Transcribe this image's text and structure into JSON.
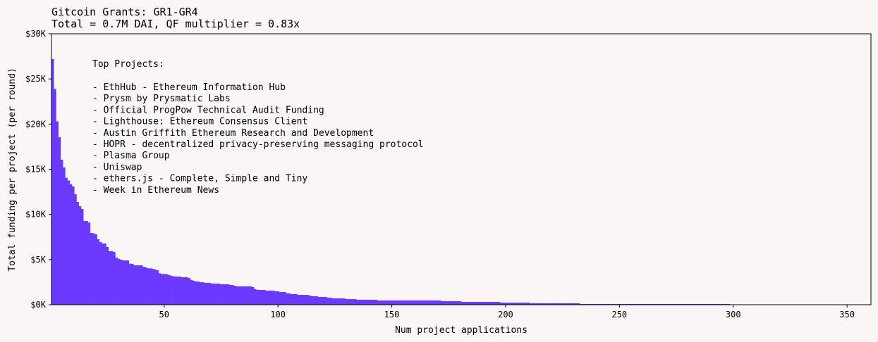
{
  "chart_data": {
    "type": "bar",
    "title": "Gitcoin Grants: GR1-GR4",
    "subtitle": "Total = 0.7M DAI, QF multiplier = 0.83x",
    "xlabel": "Num project applications",
    "ylabel": "Total funding per project (per round)",
    "xlim": [
      0.5,
      360.5
    ],
    "ylim": [
      0,
      30000
    ],
    "xticks": [
      50,
      100,
      150,
      200,
      250,
      300,
      350
    ],
    "yticks": [
      0,
      5000,
      10000,
      15000,
      20000,
      25000,
      30000
    ],
    "ytick_labels": [
      "$0K",
      "$5K",
      "$10K",
      "$15K",
      "$20K",
      "$25K",
      "$30K"
    ],
    "grid": false,
    "bar_color": "#6a38ff",
    "background": "#f9f7f3",
    "annotation": {
      "heading": "Top Projects:",
      "items": [
        "- EthHub - Ethereum Information Hub",
        "- Prysm by Prysmatic Labs",
        "- Official ProgPow Technical Audit Funding",
        "- Lighthouse: Ethereum Consensus Client",
        "- Austin Griffith Ethereum Research and Development",
        "- HOPR - decentralized privacy-preserving messaging protocol",
        "- Plasma Group",
        "- Uniswap",
        "- ethers.js - Complete, Simple and Tiny",
        "- Week in Ethereum News"
      ]
    },
    "values": [
      27200,
      23900,
      20300,
      18550,
      16050,
      15200,
      14050,
      13750,
      13350,
      13100,
      12240,
      11380,
      10900,
      10600,
      9270,
      9270,
      9100,
      7950,
      7900,
      7800,
      7250,
      6940,
      6780,
      6780,
      6390,
      5920,
      5920,
      5840,
      5220,
      5090,
      4990,
      4910,
      4900,
      4900,
      4550,
      4520,
      4360,
      4360,
      4360,
      4360,
      4200,
      4130,
      4030,
      4030,
      3980,
      3900,
      3820,
      3480,
      3400,
      3400,
      3400,
      3300,
      3220,
      3140,
      3120,
      3120,
      3120,
      3040,
      3040,
      3040,
      2940,
      2750,
      2650,
      2570,
      2570,
      2490,
      2490,
      2420,
      2420,
      2420,
      2340,
      2340,
      2340,
      2340,
      2260,
      2260,
      2260,
      2260,
      2180,
      2180,
      2100,
      2030,
      2030,
      2030,
      2030,
      2030,
      2030,
      2030,
      1950,
      1710,
      1640,
      1640,
      1640,
      1640,
      1560,
      1560,
      1560,
      1560,
      1480,
      1480,
      1400,
      1400,
      1400,
      1250,
      1250,
      1170,
      1170,
      1170,
      1090,
      1090,
      1090,
      1090,
      1090,
      1010,
      940,
      940,
      940,
      860,
      860,
      860,
      860,
      780,
      780,
      700,
      700,
      700,
      700,
      700,
      700,
      620,
      620,
      620,
      620,
      620,
      550,
      550,
      550,
      550,
      550,
      550,
      550,
      550,
      550,
      470,
      470,
      470,
      470,
      470,
      470,
      470,
      470,
      470,
      470,
      470,
      470,
      470,
      470,
      470,
      470,
      470,
      470,
      470,
      470,
      470,
      470,
      470,
      470,
      470,
      470,
      470,
      470,
      390,
      390,
      390,
      390,
      390,
      390,
      390,
      390,
      390,
      310,
      310,
      310,
      310,
      310,
      310,
      310,
      310,
      310,
      310,
      310,
      310,
      310,
      310,
      310,
      310,
      310,
      230,
      230,
      230,
      230,
      230,
      230,
      230,
      230,
      230,
      230,
      230,
      230,
      230,
      160,
      160,
      160,
      160,
      160,
      160,
      160,
      160,
      160,
      160,
      160,
      160,
      160,
      160,
      160,
      160,
      160,
      160,
      160,
      160,
      160,
      160,
      80,
      80,
      80,
      80,
      80,
      80,
      80,
      80,
      80,
      80,
      80,
      80,
      80,
      80,
      80,
      80,
      80,
      80,
      80,
      80,
      80,
      80,
      80,
      80,
      80,
      80,
      80,
      80,
      80,
      80,
      80,
      80,
      80,
      80,
      80,
      80,
      80,
      80,
      80,
      80,
      80,
      80,
      80,
      80,
      80,
      80,
      80,
      80,
      80,
      80,
      80,
      80,
      80,
      80,
      80,
      80,
      80,
      80,
      80,
      80,
      80,
      80,
      80,
      80,
      80,
      80
    ]
  }
}
